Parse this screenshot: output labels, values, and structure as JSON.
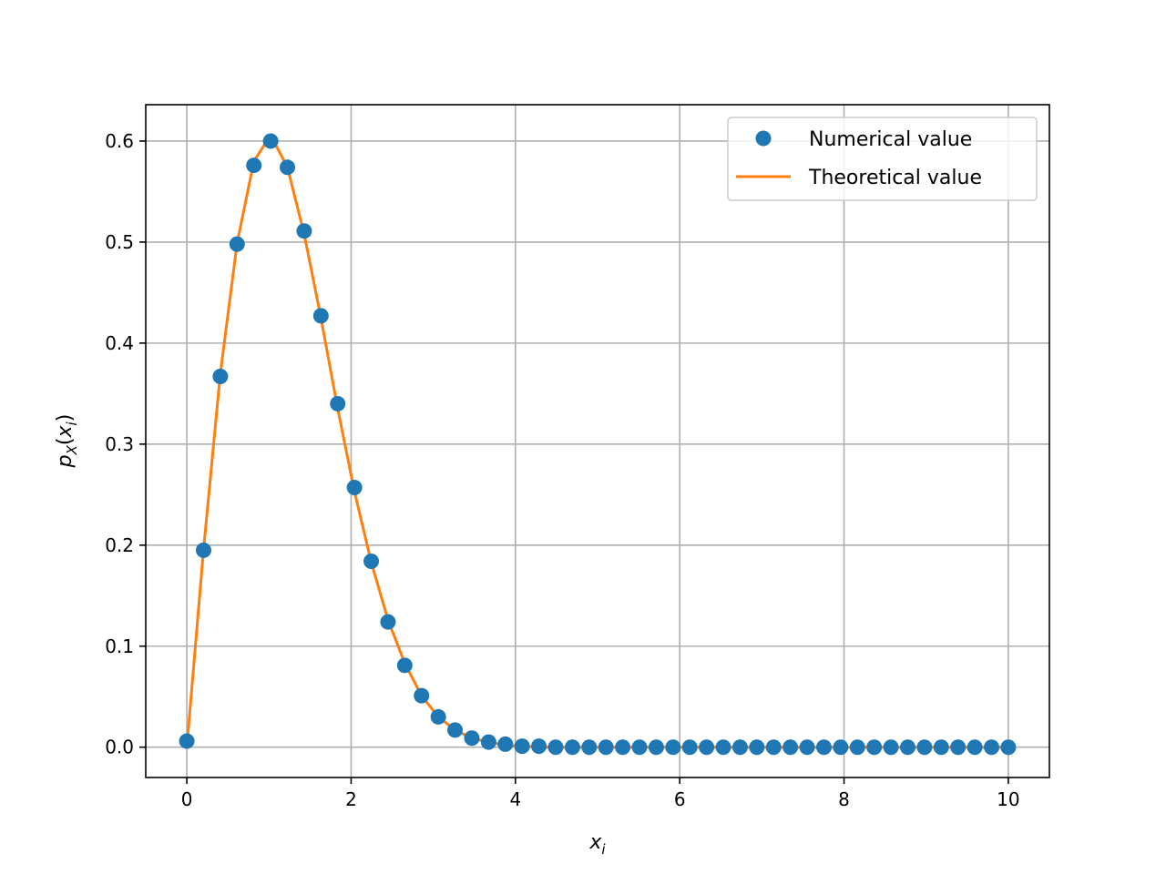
{
  "chart_data": {
    "type": "scatter",
    "xlabel": "x",
    "xlabel_sub": "i",
    "ylabel": "p",
    "ylabel_sub": "X",
    "ylabel_arg": "x",
    "ylabel_arg_sub": "i",
    "xlim": [
      -0.5,
      10.5
    ],
    "ylim": [
      -0.03,
      0.636
    ],
    "xticks": [
      0,
      2,
      4,
      6,
      8,
      10
    ],
    "xtick_labels": [
      "0",
      "2",
      "4",
      "6",
      "8",
      "10"
    ],
    "yticks": [
      0.0,
      0.1,
      0.2,
      0.3,
      0.4,
      0.5,
      0.6
    ],
    "ytick_labels": [
      "0.0",
      "0.1",
      "0.2",
      "0.3",
      "0.4",
      "0.5",
      "0.6"
    ],
    "grid": true,
    "legend_position": "top-right",
    "series": [
      {
        "name": "Numerical value",
        "kind": "markers",
        "color": "#1f77b4",
        "x": [
          0.0,
          0.2041,
          0.4082,
          0.6122,
          0.8163,
          1.0204,
          1.2245,
          1.4286,
          1.6327,
          1.8367,
          2.0408,
          2.2449,
          2.449,
          2.6531,
          2.8571,
          3.0612,
          3.2653,
          3.4694,
          3.6735,
          3.8776,
          4.0816,
          4.2857,
          4.4898,
          4.6939,
          4.898,
          5.102,
          5.3061,
          5.5102,
          5.7143,
          5.9184,
          6.1224,
          6.3265,
          6.5306,
          6.7347,
          6.9388,
          7.1429,
          7.3469,
          7.551,
          7.7551,
          7.9592,
          8.1633,
          8.3673,
          8.5714,
          8.7755,
          8.9796,
          9.1837,
          9.3878,
          9.5918,
          9.7959,
          10.0
        ],
        "y": [
          0.006,
          0.195,
          0.367,
          0.498,
          0.576,
          0.6,
          0.574,
          0.511,
          0.427,
          0.34,
          0.257,
          0.184,
          0.124,
          0.081,
          0.051,
          0.03,
          0.017,
          0.009,
          0.005,
          0.003,
          0.001,
          0.001,
          0.0,
          0.0,
          0.0,
          0.0,
          0.0,
          0.0,
          0.0,
          0.0,
          0.0,
          0.0,
          0.0,
          0.0,
          0.0,
          0.0,
          0.0,
          0.0,
          0.0,
          0.0,
          0.0,
          0.0,
          0.0,
          0.0,
          0.0,
          0.0,
          0.0,
          0.0,
          0.0,
          0.0
        ]
      },
      {
        "name": "Theoretical value",
        "kind": "line",
        "color": "#ff7f0e",
        "x": [
          0.0,
          0.2041,
          0.4082,
          0.6122,
          0.8163,
          1.0204,
          1.2245,
          1.4286,
          1.6327,
          1.8367,
          2.0408,
          2.2449,
          2.449,
          2.6531,
          2.8571,
          3.0612,
          3.2653,
          3.4694,
          3.6735,
          3.8776,
          4.0816,
          4.2857,
          4.4898,
          4.6939,
          4.898,
          5.102,
          5.3061,
          5.5102,
          5.7143,
          5.9184,
          6.1224,
          6.3265,
          6.5306,
          6.7347,
          6.9388,
          7.1429,
          7.3469,
          7.551,
          7.7551,
          7.9592,
          8.1633,
          8.3673,
          8.5714,
          8.7755,
          8.9796,
          9.1837,
          9.3878,
          9.5918,
          9.7959,
          10.0
        ],
        "y": [
          0.0,
          0.196,
          0.37,
          0.499,
          0.58,
          0.606,
          0.574,
          0.508,
          0.425,
          0.335,
          0.253,
          0.183,
          0.126,
          0.083,
          0.051,
          0.03,
          0.017,
          0.009,
          0.005,
          0.002,
          0.001,
          0.0,
          0.0,
          0.0,
          0.0,
          0.0,
          0.0,
          0.0,
          0.0,
          0.0,
          0.0,
          0.0,
          0.0,
          0.0,
          0.0,
          0.0,
          0.0,
          0.0,
          0.0,
          0.0,
          0.0,
          0.0,
          0.0,
          0.0,
          0.0,
          0.0,
          0.0,
          0.0,
          0.0,
          0.0
        ]
      }
    ]
  }
}
